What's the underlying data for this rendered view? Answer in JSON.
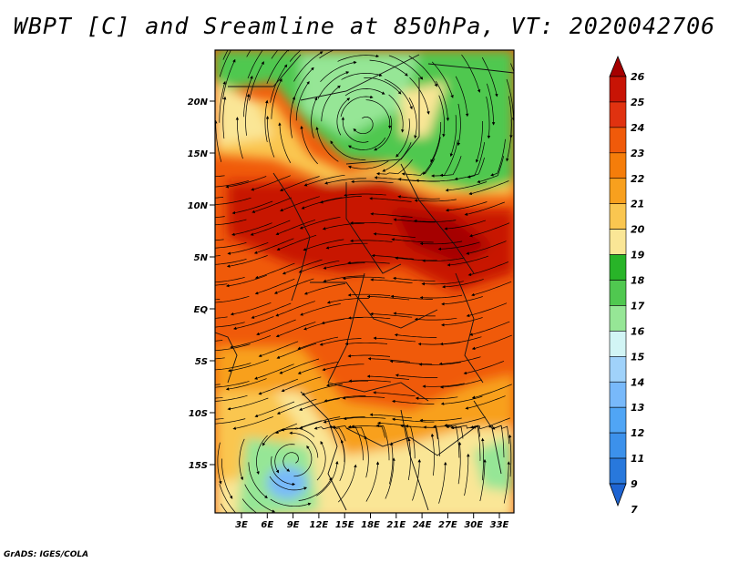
{
  "title": "WBPT [C] and Sreamline at 850hPa, VT: 2020042706",
  "footer": "GrADS: IGES/COLA",
  "map": {
    "lat_labels": [
      "20N",
      "15N",
      "10N",
      "5N",
      "EQ",
      "5S",
      "10S",
      "15S"
    ],
    "lon_labels": [
      "3E",
      "6E",
      "9E",
      "12E",
      "15E",
      "18E",
      "21E",
      "24E",
      "27E",
      "30E",
      "33E"
    ]
  },
  "colorbar": {
    "labels": [
      "26",
      "25",
      "24",
      "23",
      "22",
      "21",
      "20",
      "19",
      "18",
      "17",
      "16",
      "15",
      "14",
      "13",
      "12",
      "11",
      "9",
      "7"
    ],
    "colors": [
      "#a50000",
      "#c81405",
      "#e03210",
      "#f05a0a",
      "#f57d0a",
      "#f8a01e",
      "#fac650",
      "#fae696",
      "#28b428",
      "#50c850",
      "#96e696",
      "#d2f5f5",
      "#a0d2fa",
      "#78b9fa",
      "#50a5f5",
      "#3c91eb",
      "#2878dc",
      "#1e64d2"
    ]
  }
}
